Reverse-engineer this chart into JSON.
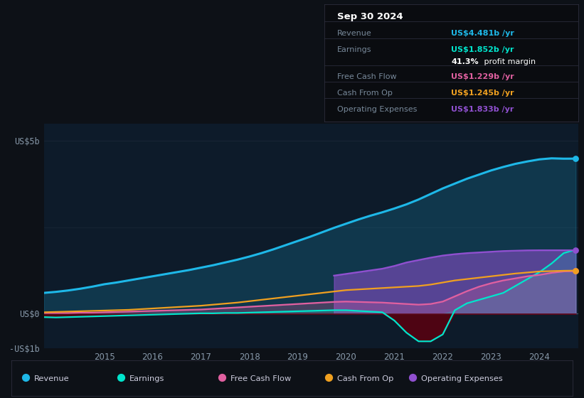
{
  "background_color": "#0d1117",
  "plot_bg_color": "#0d1b2a",
  "years": [
    2013.75,
    2014.0,
    2014.25,
    2014.5,
    2014.75,
    2015.0,
    2015.25,
    2015.5,
    2015.75,
    2016.0,
    2016.25,
    2016.5,
    2016.75,
    2017.0,
    2017.25,
    2017.5,
    2017.75,
    2018.0,
    2018.25,
    2018.5,
    2018.75,
    2019.0,
    2019.25,
    2019.5,
    2019.75,
    2020.0,
    2020.25,
    2020.5,
    2020.75,
    2021.0,
    2021.25,
    2021.5,
    2021.75,
    2022.0,
    2022.25,
    2022.5,
    2022.75,
    2023.0,
    2023.25,
    2023.5,
    2023.75,
    2024.0,
    2024.25,
    2024.5,
    2024.75
  ],
  "revenue": [
    0.6,
    0.63,
    0.67,
    0.72,
    0.78,
    0.85,
    0.9,
    0.96,
    1.02,
    1.08,
    1.14,
    1.2,
    1.26,
    1.33,
    1.4,
    1.48,
    1.56,
    1.65,
    1.75,
    1.86,
    1.98,
    2.1,
    2.22,
    2.35,
    2.48,
    2.6,
    2.72,
    2.83,
    2.93,
    3.04,
    3.16,
    3.3,
    3.46,
    3.62,
    3.76,
    3.9,
    4.02,
    4.14,
    4.24,
    4.33,
    4.4,
    4.46,
    4.49,
    4.48,
    4.481
  ],
  "earnings": [
    -0.1,
    -0.11,
    -0.1,
    -0.09,
    -0.08,
    -0.07,
    -0.06,
    -0.05,
    -0.04,
    -0.03,
    -0.02,
    -0.01,
    0.0,
    0.01,
    0.01,
    0.02,
    0.02,
    0.03,
    0.04,
    0.05,
    0.06,
    0.07,
    0.08,
    0.09,
    0.1,
    0.1,
    0.08,
    0.06,
    0.04,
    -0.2,
    -0.55,
    -0.8,
    -0.8,
    -0.6,
    0.1,
    0.3,
    0.4,
    0.5,
    0.6,
    0.8,
    1.0,
    1.2,
    1.45,
    1.75,
    1.852
  ],
  "free_cash_flow": [
    0.02,
    0.02,
    0.02,
    0.03,
    0.03,
    0.04,
    0.05,
    0.06,
    0.07,
    0.08,
    0.09,
    0.1,
    0.11,
    0.12,
    0.14,
    0.16,
    0.18,
    0.2,
    0.22,
    0.24,
    0.26,
    0.28,
    0.3,
    0.32,
    0.34,
    0.35,
    0.34,
    0.33,
    0.32,
    0.3,
    0.28,
    0.26,
    0.28,
    0.35,
    0.5,
    0.65,
    0.78,
    0.88,
    0.96,
    1.02,
    1.08,
    1.12,
    1.18,
    1.22,
    1.229
  ],
  "cash_from_op": [
    0.04,
    0.05,
    0.06,
    0.07,
    0.08,
    0.09,
    0.1,
    0.11,
    0.13,
    0.15,
    0.17,
    0.19,
    0.21,
    0.23,
    0.26,
    0.29,
    0.32,
    0.36,
    0.4,
    0.44,
    0.48,
    0.52,
    0.56,
    0.6,
    0.64,
    0.68,
    0.7,
    0.72,
    0.74,
    0.76,
    0.78,
    0.8,
    0.84,
    0.9,
    0.96,
    1.0,
    1.04,
    1.08,
    1.12,
    1.16,
    1.19,
    1.22,
    1.23,
    1.24,
    1.245
  ],
  "operating_expenses": [
    null,
    null,
    null,
    null,
    null,
    null,
    null,
    null,
    null,
    null,
    null,
    null,
    null,
    null,
    null,
    null,
    null,
    null,
    null,
    null,
    null,
    null,
    null,
    null,
    1.1,
    1.15,
    1.2,
    1.25,
    1.3,
    1.38,
    1.48,
    1.55,
    1.62,
    1.68,
    1.72,
    1.75,
    1.77,
    1.79,
    1.81,
    1.82,
    1.83,
    1.833,
    1.833,
    1.833,
    1.833
  ],
  "ylim": [
    -1.0,
    5.5
  ],
  "ytick_vals": [
    -1.0,
    0.0,
    5.0
  ],
  "ytick_labels": [
    "-US$1b",
    "US$0",
    "US$5b"
  ],
  "xtick_years": [
    2015,
    2016,
    2017,
    2018,
    2019,
    2020,
    2021,
    2022,
    2023,
    2024
  ],
  "colors": {
    "revenue": "#1eb8e8",
    "earnings": "#00e5cc",
    "free_cash_flow": "#e060a0",
    "cash_from_op": "#f0a020",
    "operating_expenses": "#9050d0"
  },
  "grid_color": "#1e2a3a",
  "zero_line_color": "#445566",
  "legend": [
    {
      "label": "Revenue",
      "color": "#1eb8e8"
    },
    {
      "label": "Earnings",
      "color": "#00e5cc"
    },
    {
      "label": "Free Cash Flow",
      "color": "#e060a0"
    },
    {
      "label": "Cash From Op",
      "color": "#f0a020"
    },
    {
      "label": "Operating Expenses",
      "color": "#9050d0"
    }
  ],
  "info_box": {
    "date": "Sep 30 2024",
    "rows": [
      {
        "label": "Revenue",
        "value": "US$4.481b /yr",
        "color": "#1eb8e8"
      },
      {
        "label": "Earnings",
        "value": "US$1.852b /yr",
        "color": "#00e5cc"
      },
      {
        "label": "",
        "value": "41.3%",
        "suffix": " profit margin",
        "color": "#ffffff"
      },
      {
        "label": "Free Cash Flow",
        "value": "US$1.229b /yr",
        "color": "#e060a0"
      },
      {
        "label": "Cash From Op",
        "value": "US$1.245b /yr",
        "color": "#f0a020"
      },
      {
        "label": "Operating Expenses",
        "value": "US$1.833b /yr",
        "color": "#9050d0"
      }
    ]
  }
}
